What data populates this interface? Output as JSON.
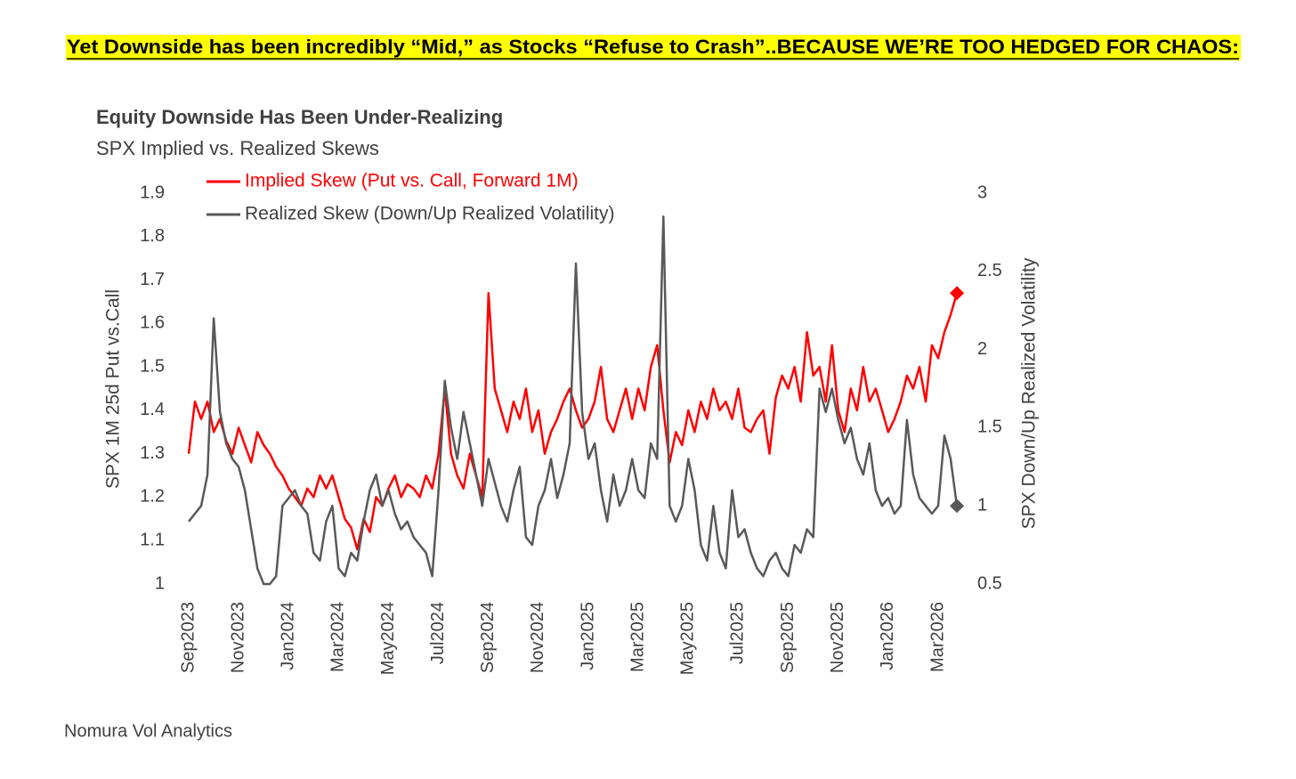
{
  "headline": "Yet Downside has been incredibly “Mid,” as Stocks “Refuse to Crash”..BECAUSE WE’RE TOO HEDGED FOR CHAOS:",
  "chart_data": {
    "type": "line",
    "title": "Equity Downside Has Been Under-Realizing",
    "subtitle": "SPX Implied vs. Realized Skews",
    "ylabel": "SPX 1M 25d Put vs.Call",
    "y2label": "SPX Down/Up Realized Volatility",
    "source": "Nomura Vol Analytics",
    "categories": [
      "Sep2023",
      null,
      null,
      null,
      null,
      null,
      null,
      null,
      "Nov2023",
      null,
      null,
      null,
      null,
      null,
      null,
      null,
      "Jan2024",
      null,
      null,
      null,
      null,
      null,
      null,
      null,
      "Mar2024",
      null,
      null,
      null,
      null,
      null,
      null,
      null,
      "May2024",
      null,
      null,
      null,
      null,
      null,
      null,
      null,
      "Jul2024",
      null,
      null,
      null,
      null,
      null,
      null,
      null,
      "Sep2024",
      null,
      null,
      null,
      null,
      null,
      null,
      null,
      "Nov2024",
      null,
      null,
      null,
      null,
      null,
      null,
      null,
      "Jan2025",
      null,
      null,
      null,
      null,
      null,
      null,
      null,
      "Mar2025",
      null,
      null,
      null,
      null,
      null,
      null,
      null,
      "May2025",
      null,
      null,
      null,
      null,
      null,
      null,
      null,
      "Jul2025",
      null,
      null,
      null,
      null,
      null,
      null,
      null,
      "Sep2025",
      null,
      null,
      null,
      null,
      null,
      null,
      null,
      "Nov2025",
      null,
      null,
      null,
      null,
      null,
      null,
      null,
      "Jan2026",
      null,
      null,
      null,
      null,
      null,
      null,
      null,
      "Mar2026",
      null,
      null,
      null
    ],
    "ylim": [
      1,
      1.9
    ],
    "yticks": [
      1,
      1.1,
      1.2,
      1.3,
      1.4,
      1.5,
      1.6,
      1.7,
      1.8,
      1.9
    ],
    "y2lim": [
      0.5,
      3
    ],
    "y2ticks": [
      0.5,
      1,
      1.5,
      2,
      2.5,
      3
    ],
    "series": [
      {
        "name": "Implied Skew (Put vs. Call, Forward 1M)",
        "color": "#ff0000",
        "values": [
          1.3,
          1.42,
          1.38,
          1.42,
          1.35,
          1.38,
          1.33,
          1.3,
          1.36,
          1.32,
          1.28,
          1.35,
          1.32,
          1.3,
          1.27,
          1.25,
          1.22,
          1.2,
          1.18,
          1.22,
          1.2,
          1.25,
          1.22,
          1.25,
          1.2,
          1.15,
          1.13,
          1.08,
          1.15,
          1.12,
          1.2,
          1.18,
          1.22,
          1.25,
          1.2,
          1.23,
          1.22,
          1.2,
          1.25,
          1.22,
          1.3,
          1.45,
          1.3,
          1.25,
          1.22,
          1.3,
          1.25,
          1.2,
          1.67,
          1.45,
          1.4,
          1.35,
          1.42,
          1.38,
          1.45,
          1.35,
          1.4,
          1.3,
          1.35,
          1.38,
          1.42,
          1.45,
          1.4,
          1.36,
          1.38,
          1.42,
          1.5,
          1.38,
          1.35,
          1.4,
          1.45,
          1.38,
          1.45,
          1.4,
          1.5,
          1.55,
          1.4,
          1.28,
          1.35,
          1.32,
          1.4,
          1.35,
          1.42,
          1.38,
          1.45,
          1.4,
          1.42,
          1.38,
          1.45,
          1.36,
          1.35,
          1.38,
          1.4,
          1.3,
          1.43,
          1.48,
          1.45,
          1.5,
          1.42,
          1.58,
          1.48,
          1.5,
          1.42,
          1.55,
          1.4,
          1.35,
          1.45,
          1.4,
          1.5,
          1.42,
          1.45,
          1.4,
          1.35,
          1.38,
          1.42,
          1.48,
          1.45,
          1.5,
          1.42,
          1.55,
          1.52,
          1.58,
          1.62,
          1.67
        ]
      },
      {
        "name": "Realized Skew (Down/Up Realized Volatility)",
        "color": "#595959",
        "axis": "y2",
        "values": [
          0.9,
          0.95,
          1.0,
          1.2,
          2.2,
          1.6,
          1.4,
          1.3,
          1.25,
          1.1,
          0.85,
          0.6,
          0.5,
          0.5,
          0.55,
          1.0,
          1.05,
          1.1,
          1.0,
          0.95,
          0.7,
          0.65,
          0.9,
          1.0,
          0.6,
          0.55,
          0.7,
          0.65,
          0.9,
          1.1,
          1.2,
          1.0,
          1.1,
          0.95,
          0.85,
          0.9,
          0.8,
          0.75,
          0.7,
          0.55,
          1.1,
          1.8,
          1.5,
          1.3,
          1.6,
          1.4,
          1.2,
          1.0,
          1.3,
          1.15,
          1.0,
          0.9,
          1.1,
          1.25,
          0.8,
          0.75,
          1.0,
          1.1,
          1.3,
          1.05,
          1.2,
          1.4,
          2.55,
          1.6,
          1.3,
          1.4,
          1.1,
          0.9,
          1.2,
          1.0,
          1.1,
          1.3,
          1.1,
          1.05,
          1.4,
          1.3,
          2.85,
          1.0,
          0.9,
          1.0,
          1.3,
          1.1,
          0.75,
          0.65,
          1.0,
          0.7,
          0.6,
          1.1,
          0.8,
          0.85,
          0.7,
          0.6,
          0.55,
          0.65,
          0.7,
          0.6,
          0.55,
          0.75,
          0.7,
          0.85,
          0.8,
          1.75,
          1.6,
          1.75,
          1.55,
          1.4,
          1.5,
          1.3,
          1.2,
          1.4,
          1.1,
          1.0,
          1.05,
          0.95,
          1.0,
          1.55,
          1.2,
          1.05,
          1.0,
          0.95,
          1.0,
          1.45,
          1.3,
          1.0
        ]
      }
    ]
  }
}
